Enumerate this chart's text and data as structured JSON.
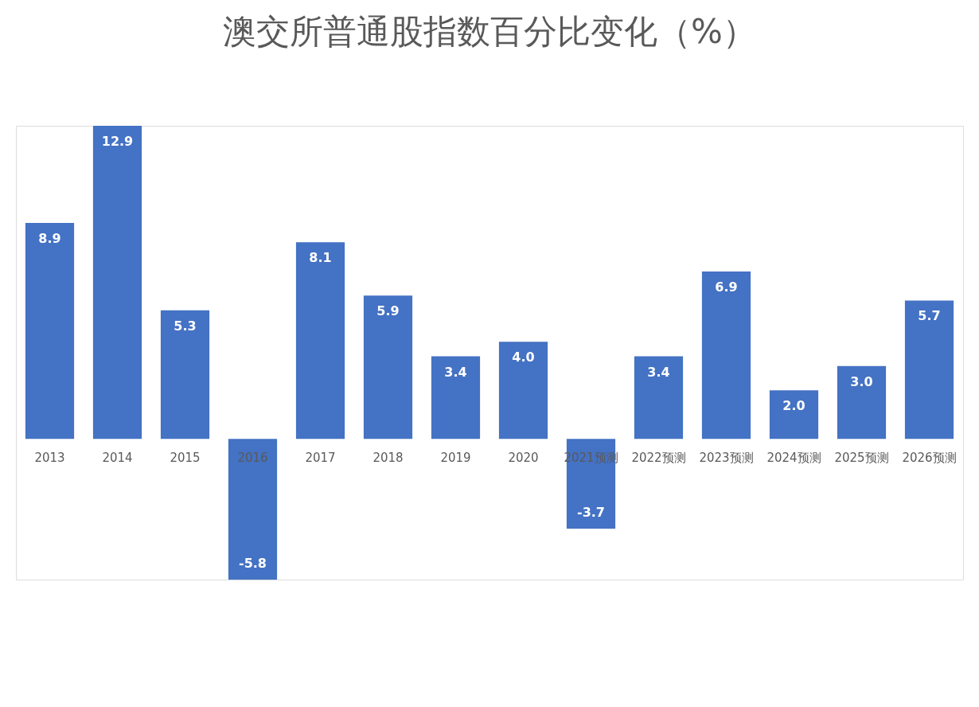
{
  "chart_data": {
    "type": "bar",
    "title": "澳交所普通股指数百分比变化（%）",
    "categories": [
      "2013",
      "2014",
      "2015",
      "2016",
      "2017",
      "2018",
      "2019",
      "2020",
      "2021预测",
      "2022预测",
      "2023预测",
      "2024预测",
      "2025预测",
      "2026预测"
    ],
    "values": [
      8.9,
      12.9,
      5.3,
      -5.8,
      8.1,
      5.9,
      3.4,
      4.0,
      -3.7,
      3.4,
      6.9,
      2.0,
      3.0,
      5.7
    ],
    "color": "#4472c4",
    "value_labels": [
      "8.9",
      "12.9",
      "5.3",
      "-5.8",
      "8.1",
      "5.9",
      "3.4",
      "4.0",
      "-3.7",
      "3.4",
      "6.9",
      "2.0",
      "3.0",
      "5.7"
    ]
  }
}
